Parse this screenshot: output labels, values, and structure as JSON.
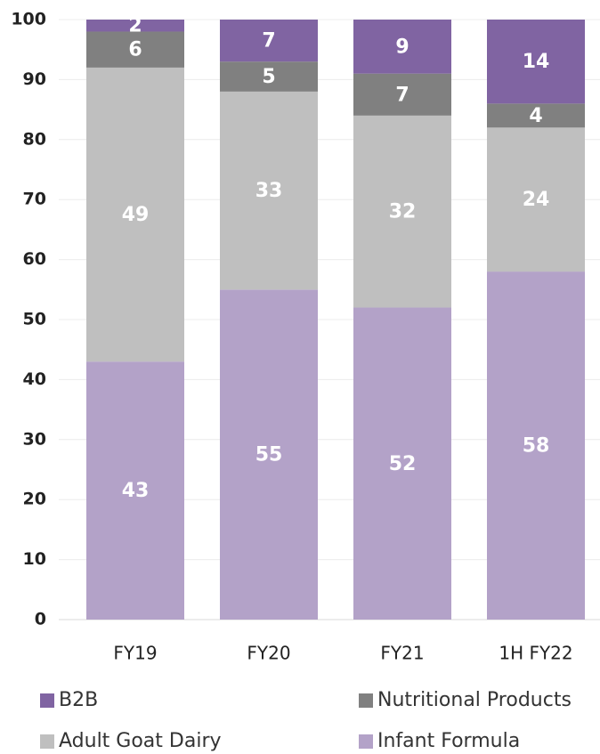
{
  "chart_data": {
    "type": "stacked_bar",
    "categories": [
      "FY19",
      "FY20",
      "FY21",
      "1H FY22"
    ],
    "series": [
      {
        "name": "B2B",
        "color": "#8064a2",
        "values": [
          2,
          7,
          9,
          14
        ]
      },
      {
        "name": "Nutritional Products",
        "color": "#808080",
        "values": [
          6,
          5,
          7,
          4
        ]
      },
      {
        "name": "Adult Goat Dairy",
        "color": "#bfbfbf",
        "values": [
          49,
          33,
          32,
          24
        ]
      },
      {
        "name": "Infant Formula",
        "color": "#b3a2c8",
        "values": [
          43,
          55,
          52,
          58
        ]
      }
    ],
    "ylim": [
      0,
      100
    ],
    "yticks": [
      0,
      10,
      20,
      30,
      40,
      50,
      60,
      70,
      80,
      90,
      100
    ],
    "grid": true
  }
}
